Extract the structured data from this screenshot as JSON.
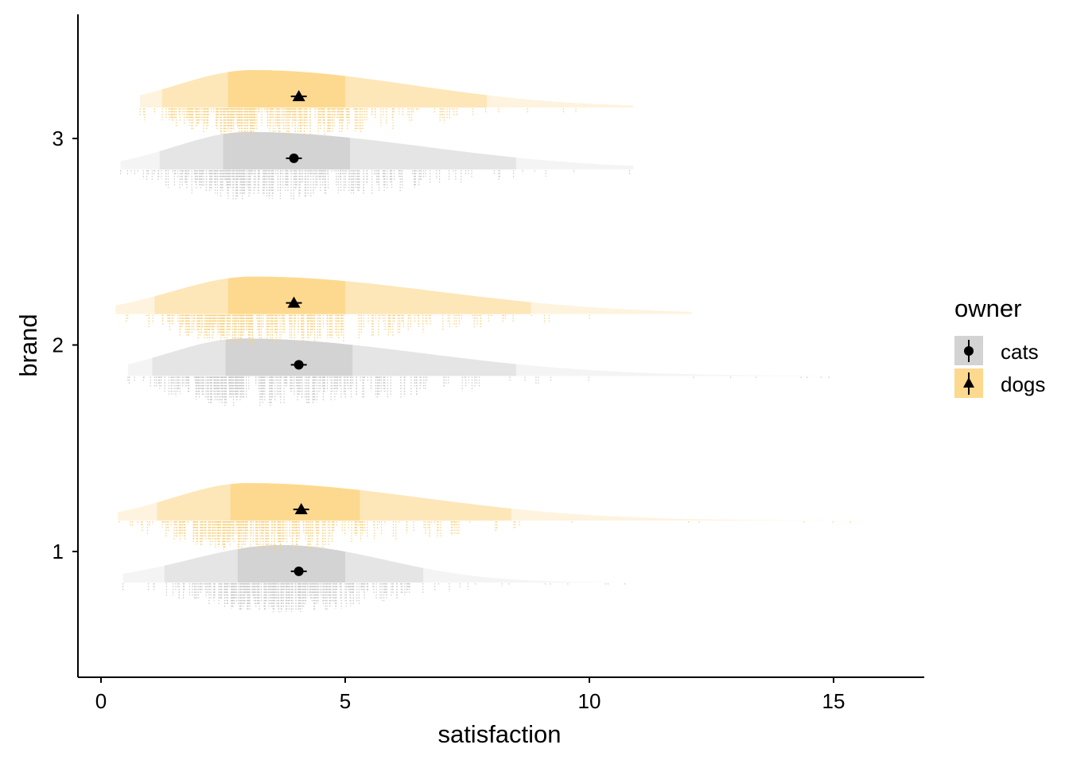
{
  "chart_data": {
    "type": "raincloud",
    "xlabel": "satisfaction",
    "ylabel": "brand",
    "xlim": [
      -0.5,
      16.8
    ],
    "ylim": [
      0.4,
      3.6
    ],
    "x_ticks": [
      0,
      5,
      10,
      15
    ],
    "y_ticks": [
      1,
      2,
      3
    ],
    "legend": {
      "title": "owner",
      "position": "right",
      "entries": [
        {
          "label": "cats",
          "color": "#d3d3d3",
          "marker": "circle"
        },
        {
          "label": "dogs",
          "color": "#fdd98f",
          "marker": "triangle"
        }
      ]
    },
    "series": [
      {
        "brand": 1,
        "owner": "cats",
        "mean": 4.05,
        "min": 0.45,
        "max": 11.4,
        "quantiles": {
          "q10": 1.3,
          "q25": 2.8,
          "q75": 5.0,
          "q90": 6.6
        },
        "density_peak": 3.7
      },
      {
        "brand": 1,
        "owner": "dogs",
        "mean": 4.1,
        "min": 0.35,
        "max": 16.1,
        "quantiles": {
          "q10": 1.15,
          "q25": 2.65,
          "q75": 5.3,
          "q90": 8.4
        },
        "density_peak": 3.0
      },
      {
        "brand": 2,
        "owner": "cats",
        "mean": 4.05,
        "min": 0.55,
        "max": 15.1,
        "quantiles": {
          "q10": 1.05,
          "q25": 2.55,
          "q75": 5.15,
          "q90": 8.5
        },
        "density_peak": 2.9
      },
      {
        "brand": 2,
        "owner": "dogs",
        "mean": 3.95,
        "min": 0.3,
        "max": 12.1,
        "quantiles": {
          "q10": 1.1,
          "q25": 2.6,
          "q75": 5.0,
          "q90": 8.8
        },
        "density_peak": 3.1
      },
      {
        "brand": 3,
        "owner": "cats",
        "mean": 3.95,
        "min": 0.4,
        "max": 10.9,
        "quantiles": {
          "q10": 1.2,
          "q25": 2.5,
          "q75": 5.1,
          "q90": 8.5
        },
        "density_peak": 3.0
      },
      {
        "brand": 3,
        "owner": "dogs",
        "mean": 4.05,
        "min": 0.8,
        "max": 10.9,
        "quantiles": {
          "q10": 1.25,
          "q25": 2.6,
          "q75": 5.0,
          "q90": 7.9
        },
        "density_peak": 3.1
      }
    ]
  }
}
